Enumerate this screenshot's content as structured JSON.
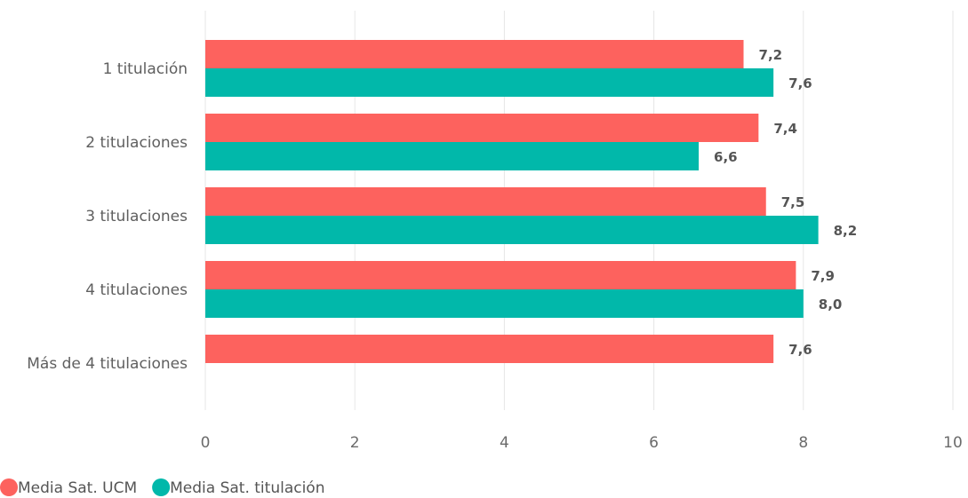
{
  "chart_data": {
    "type": "bar",
    "orientation": "horizontal",
    "title": "",
    "xlabel": "",
    "ylabel": "",
    "categories": [
      "1 titulación",
      "2 titulaciones",
      "3 titulaciones",
      "4 titulaciones",
      "Más de 4 titulaciones"
    ],
    "series": [
      {
        "name": "Media Sat. UCM",
        "color": "#fd625e",
        "values": [
          7.2,
          7.4,
          7.5,
          7.9,
          7.6
        ],
        "labels": [
          "7,2",
          "7,4",
          "7,5",
          "7,9",
          "7,6"
        ]
      },
      {
        "name": "Media Sat. titulación",
        "color": "#01b8aa",
        "values": [
          7.6,
          6.6,
          8.2,
          8.0,
          null
        ],
        "labels": [
          "7,6",
          "6,6",
          "8,2",
          "8,0",
          null
        ]
      }
    ],
    "xlim": [
      0,
      10
    ],
    "xticks": [
      0,
      2,
      4,
      6,
      8,
      10
    ],
    "xtick_labels": [
      "0",
      "2",
      "4",
      "6",
      "8",
      "10"
    ],
    "grid": true,
    "legend_position": "bottom-left"
  }
}
